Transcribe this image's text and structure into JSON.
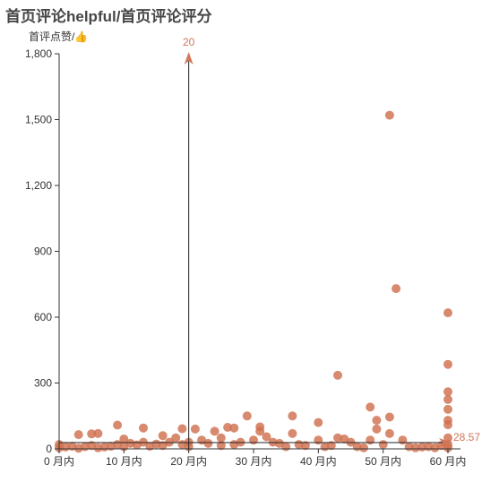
{
  "title": "首页评论helpful/首页评论评分",
  "y_axis_name": "首评点赞/",
  "y_axis_icon": "thumbs-up-icon",
  "colors": {
    "point": "#d0704f",
    "axis": "#333333",
    "mark": "#d1765a"
  },
  "chart_data": {
    "type": "scatter",
    "title": "首页评论helpful/首页评论评分",
    "ylabel": "首评点赞/",
    "xlabel": "",
    "xlim": [
      0,
      65
    ],
    "ylim": [
      0,
      1800
    ],
    "x_ticks": [
      {
        "value": 0,
        "label": "0 月内"
      },
      {
        "value": 10,
        "label": "10 月内"
      },
      {
        "value": 20,
        "label": "20 月内"
      },
      {
        "value": 30,
        "label": "30 月内"
      },
      {
        "value": 40,
        "label": "40 月内"
      },
      {
        "value": 50,
        "label": "50 月内"
      },
      {
        "value": 60,
        "label": "60 月内"
      }
    ],
    "y_ticks": [
      {
        "value": 0,
        "label": "0"
      },
      {
        "value": 300,
        "label": "300"
      },
      {
        "value": 600,
        "label": "600"
      },
      {
        "value": 900,
        "label": "900"
      },
      {
        "value": 1200,
        "label": "1,200"
      },
      {
        "value": 1500,
        "label": "1,500"
      },
      {
        "value": 1800,
        "label": "1,800"
      }
    ],
    "grid": false,
    "mark_line_x": {
      "value": 20,
      "label": "20"
    },
    "mark_line_y": {
      "value": 28.57,
      "label": "28.57"
    },
    "points": [
      [
        0,
        20
      ],
      [
        0,
        5
      ],
      [
        1,
        8
      ],
      [
        2,
        12
      ],
      [
        3,
        65
      ],
      [
        3,
        3
      ],
      [
        4,
        10
      ],
      [
        5,
        15
      ],
      [
        5,
        68
      ],
      [
        6,
        70
      ],
      [
        6,
        5
      ],
      [
        7,
        8
      ],
      [
        8,
        12
      ],
      [
        9,
        108
      ],
      [
        9,
        20
      ],
      [
        10,
        45
      ],
      [
        10,
        10
      ],
      [
        11,
        25
      ],
      [
        12,
        18
      ],
      [
        13,
        95
      ],
      [
        13,
        30
      ],
      [
        14,
        12
      ],
      [
        15,
        22
      ],
      [
        16,
        60
      ],
      [
        16,
        15
      ],
      [
        17,
        30
      ],
      [
        18,
        50
      ],
      [
        19,
        92
      ],
      [
        19,
        20
      ],
      [
        20,
        10
      ],
      [
        20,
        30
      ],
      [
        21,
        90
      ],
      [
        22,
        40
      ],
      [
        23,
        25
      ],
      [
        24,
        80
      ],
      [
        25,
        50
      ],
      [
        25,
        15
      ],
      [
        26,
        98
      ],
      [
        27,
        95
      ],
      [
        27,
        20
      ],
      [
        28,
        30
      ],
      [
        29,
        150
      ],
      [
        30,
        40
      ],
      [
        31,
        100
      ],
      [
        31,
        80
      ],
      [
        32,
        55
      ],
      [
        33,
        30
      ],
      [
        34,
        25
      ],
      [
        35,
        10
      ],
      [
        36,
        150
      ],
      [
        36,
        70
      ],
      [
        37,
        20
      ],
      [
        38,
        15
      ],
      [
        40,
        120
      ],
      [
        40,
        40
      ],
      [
        41,
        10
      ],
      [
        42,
        15
      ],
      [
        43,
        335
      ],
      [
        43,
        50
      ],
      [
        44,
        45
      ],
      [
        45,
        30
      ],
      [
        46,
        10
      ],
      [
        47,
        5
      ],
      [
        48,
        190
      ],
      [
        48,
        40
      ],
      [
        49,
        130
      ],
      [
        49,
        90
      ],
      [
        50,
        20
      ],
      [
        51,
        1520
      ],
      [
        51,
        145
      ],
      [
        51,
        70
      ],
      [
        52,
        730
      ],
      [
        53,
        40
      ],
      [
        54,
        10
      ],
      [
        55,
        5
      ],
      [
        56,
        8
      ],
      [
        57,
        10
      ],
      [
        58,
        5
      ],
      [
        59,
        15
      ],
      [
        60,
        620
      ],
      [
        60,
        385
      ],
      [
        60,
        260
      ],
      [
        60,
        225
      ],
      [
        60,
        180
      ],
      [
        60,
        130
      ],
      [
        60,
        110
      ],
      [
        60,
        50
      ],
      [
        60,
        20
      ],
      [
        60,
        5
      ]
    ]
  }
}
